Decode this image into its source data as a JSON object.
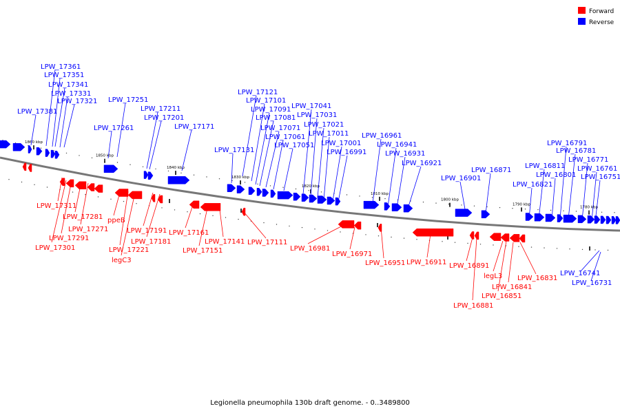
{
  "caption": "Legionella pneumophila 130b draft genome. - 0..3489800",
  "legend": {
    "placement": "top-right",
    "items": [
      {
        "label": "Forward",
        "color": "#ff0000"
      },
      {
        "label": "Reverse",
        "color": "#0000ff"
      }
    ]
  },
  "colors": {
    "forward": "#ff0000",
    "reverse": "#0000ff",
    "backbone": "#777777"
  },
  "ticks": [
    "1860 kbp",
    "1850 kbp",
    "1840 kbp",
    "1830 kbp",
    "1820 kbp",
    "1810 kbp",
    "1800 kbp",
    "1790 kbp",
    "1780 kbp"
  ],
  "reverse_labels": [
    "LPW_17361",
    "LPW_17351",
    "LPW_17341",
    "LPW_17331",
    "LPW_17321",
    "LPW_17381",
    "LPW_17251",
    "LPW_17261",
    "LPW_17211",
    "LPW_17201",
    "LPW_17171",
    "LPW_17121",
    "LPW_17101",
    "LPW_17091",
    "LPW_17081",
    "LPW_17071",
    "LPW_17061",
    "LPW_17051",
    "LPW_17041",
    "LPW_17031",
    "LPW_17021",
    "LPW_17011",
    "LPW_17001",
    "LPW_16991",
    "LPW_17131",
    "LPW_16961",
    "LPW_16941",
    "LPW_16931",
    "LPW_16921",
    "LPW_16871",
    "LPW_16901",
    "LPW_16791",
    "LPW_16781",
    "LPW_16771",
    "LPW_16811",
    "LPW_16761",
    "LPW_16801",
    "LPW_16751",
    "LPW_16821",
    "LPW_16741",
    "LPW_16731"
  ],
  "forward_labels": [
    "LPW_17311",
    "ppeB",
    "LPW_17281",
    "LPW_17271",
    "LPW_17191",
    "LPW_17291",
    "LPW_17181",
    "LPW_17301",
    "LPW_17221",
    "legC3",
    "LPW_17161",
    "LPW_17141",
    "LPW_17151",
    "LPW_17111",
    "LPW_16981",
    "LPW_16971",
    "LPW_16951",
    "LPW_16911",
    "LPW_16891",
    "legL3",
    "LPW_16831",
    "LPW_16841",
    "LPW_16851",
    "LPW_16881"
  ]
}
